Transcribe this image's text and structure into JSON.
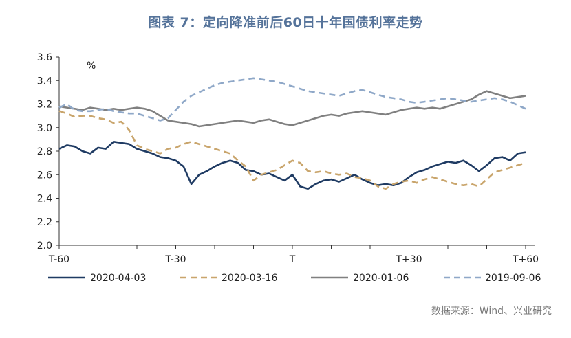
{
  "title": "图表 7：定向降准前后60日十年国债利率走势",
  "source": "数据来源：Wind、兴业研究",
  "chart_data": {
    "type": "line",
    "unit_label": "%",
    "xlabel": "",
    "ylabel": "",
    "ylim": [
      2.0,
      3.6
    ],
    "yticks": [
      "2.0",
      "2.2",
      "2.4",
      "2.6",
      "2.8",
      "3.0",
      "3.2",
      "3.4",
      "3.6"
    ],
    "xlim": [
      -60,
      60
    ],
    "xticks": [
      {
        "x": -60,
        "label": "T-60"
      },
      {
        "x": -30,
        "label": "T-30"
      },
      {
        "x": 0,
        "label": "T"
      },
      {
        "x": 30,
        "label": "T+30"
      },
      {
        "x": 60,
        "label": "T+60"
      }
    ],
    "legend_position": "bottom",
    "grid": false,
    "series": [
      {
        "name": "2020-04-03",
        "color": "#1f3b63",
        "dash": "solid",
        "x": [
          -60,
          -58,
          -56,
          -54,
          -52,
          -50,
          -48,
          -46,
          -44,
          -42,
          -40,
          -38,
          -36,
          -34,
          -32,
          -30,
          -28,
          -26,
          -24,
          -22,
          -20,
          -18,
          -16,
          -14,
          -12,
          -10,
          -8,
          -6,
          -4,
          -2,
          0,
          2,
          4,
          6,
          8,
          10,
          12,
          14,
          16,
          18,
          20,
          22,
          24,
          26,
          28,
          30,
          32,
          34,
          36,
          38,
          40,
          42,
          44,
          46,
          48,
          50,
          52,
          54,
          56,
          58,
          60
        ],
        "y": [
          2.82,
          2.85,
          2.84,
          2.8,
          2.78,
          2.83,
          2.82,
          2.88,
          2.87,
          2.86,
          2.82,
          2.8,
          2.78,
          2.75,
          2.74,
          2.72,
          2.67,
          2.52,
          2.6,
          2.63,
          2.67,
          2.7,
          2.72,
          2.7,
          2.64,
          2.63,
          2.6,
          2.61,
          2.58,
          2.55,
          2.6,
          2.5,
          2.48,
          2.52,
          2.55,
          2.56,
          2.54,
          2.57,
          2.6,
          2.56,
          2.53,
          2.51,
          2.52,
          2.51,
          2.53,
          2.58,
          2.62,
          2.64,
          2.67,
          2.69,
          2.71,
          2.7,
          2.72,
          2.68,
          2.63,
          2.68,
          2.74,
          2.75,
          2.72,
          2.78,
          2.79
        ]
      },
      {
        "name": "2020-03-16",
        "color": "#c9a56c",
        "dash": "dashed",
        "x": [
          -60,
          -58,
          -56,
          -54,
          -52,
          -50,
          -48,
          -46,
          -44,
          -42,
          -40,
          -38,
          -36,
          -34,
          -32,
          -30,
          -28,
          -26,
          -24,
          -22,
          -20,
          -18,
          -16,
          -14,
          -12,
          -10,
          -8,
          -6,
          -4,
          -2,
          0,
          2,
          4,
          6,
          8,
          10,
          12,
          14,
          16,
          18,
          20,
          22,
          24,
          26,
          28,
          30,
          32,
          34,
          36,
          38,
          40,
          42,
          44,
          46,
          48,
          50,
          52,
          54,
          56,
          58,
          60
        ],
        "y": [
          3.14,
          3.12,
          3.09,
          3.1,
          3.1,
          3.08,
          3.07,
          3.04,
          3.05,
          2.98,
          2.85,
          2.82,
          2.8,
          2.78,
          2.82,
          2.83,
          2.86,
          2.88,
          2.86,
          2.84,
          2.82,
          2.8,
          2.78,
          2.72,
          2.67,
          2.55,
          2.6,
          2.62,
          2.64,
          2.68,
          2.72,
          2.7,
          2.63,
          2.62,
          2.63,
          2.61,
          2.6,
          2.61,
          2.58,
          2.57,
          2.55,
          2.5,
          2.48,
          2.52,
          2.54,
          2.55,
          2.53,
          2.56,
          2.58,
          2.56,
          2.54,
          2.52,
          2.51,
          2.52,
          2.5,
          2.56,
          2.62,
          2.64,
          2.66,
          2.68,
          2.7
        ]
      },
      {
        "name": "2020-01-06",
        "color": "#808080",
        "dash": "solid",
        "x": [
          -60,
          -58,
          -56,
          -54,
          -52,
          -50,
          -48,
          -46,
          -44,
          -42,
          -40,
          -38,
          -36,
          -34,
          -32,
          -30,
          -28,
          -26,
          -24,
          -22,
          -20,
          -18,
          -16,
          -14,
          -12,
          -10,
          -8,
          -6,
          -4,
          -2,
          0,
          2,
          4,
          6,
          8,
          10,
          12,
          14,
          16,
          18,
          20,
          22,
          24,
          26,
          28,
          30,
          32,
          34,
          36,
          38,
          40,
          42,
          44,
          46,
          48,
          50,
          52,
          54,
          56,
          58,
          60
        ],
        "y": [
          3.18,
          3.17,
          3.16,
          3.15,
          3.17,
          3.16,
          3.15,
          3.16,
          3.15,
          3.16,
          3.17,
          3.16,
          3.14,
          3.1,
          3.06,
          3.05,
          3.04,
          3.03,
          3.01,
          3.02,
          3.03,
          3.04,
          3.05,
          3.06,
          3.05,
          3.04,
          3.06,
          3.07,
          3.05,
          3.03,
          3.02,
          3.04,
          3.06,
          3.08,
          3.1,
          3.11,
          3.1,
          3.12,
          3.13,
          3.14,
          3.13,
          3.12,
          3.11,
          3.13,
          3.15,
          3.16,
          3.17,
          3.16,
          3.17,
          3.16,
          3.18,
          3.2,
          3.22,
          3.24,
          3.28,
          3.31,
          3.29,
          3.27,
          3.25,
          3.26,
          3.27
        ]
      },
      {
        "name": "2019-09-06",
        "color": "#8fa8c8",
        "dash": "dashed",
        "x": [
          -60,
          -58,
          -56,
          -54,
          -52,
          -50,
          -48,
          -46,
          -44,
          -42,
          -40,
          -38,
          -36,
          -34,
          -32,
          -30,
          -28,
          -26,
          -24,
          -22,
          -20,
          -18,
          -16,
          -14,
          -12,
          -10,
          -8,
          -6,
          -4,
          -2,
          0,
          2,
          4,
          6,
          8,
          10,
          12,
          14,
          16,
          18,
          20,
          22,
          24,
          26,
          28,
          30,
          32,
          34,
          36,
          38,
          40,
          42,
          44,
          46,
          48,
          50,
          52,
          54,
          56,
          58,
          60
        ],
        "y": [
          3.17,
          3.2,
          3.15,
          3.14,
          3.14,
          3.15,
          3.16,
          3.14,
          3.13,
          3.12,
          3.12,
          3.1,
          3.08,
          3.06,
          3.08,
          3.15,
          3.22,
          3.27,
          3.3,
          3.33,
          3.36,
          3.38,
          3.39,
          3.4,
          3.41,
          3.42,
          3.41,
          3.4,
          3.39,
          3.37,
          3.35,
          3.33,
          3.31,
          3.3,
          3.29,
          3.28,
          3.27,
          3.29,
          3.31,
          3.32,
          3.3,
          3.28,
          3.26,
          3.25,
          3.24,
          3.22,
          3.21,
          3.22,
          3.23,
          3.24,
          3.25,
          3.24,
          3.23,
          3.22,
          3.23,
          3.24,
          3.25,
          3.24,
          3.22,
          3.19,
          3.16
        ]
      }
    ]
  }
}
